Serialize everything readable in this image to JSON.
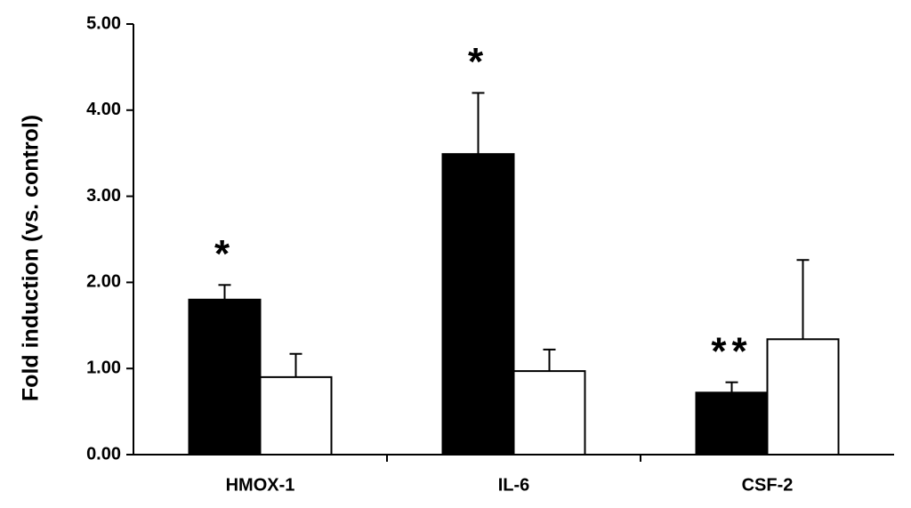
{
  "chart_data": {
    "type": "bar",
    "y_label": "Fold induction (vs. control)",
    "categories": [
      "HMOX-1",
      "IL-6",
      "CSF-2"
    ],
    "series": [
      {
        "color": "#000000",
        "values": [
          1.8,
          3.49,
          0.72
        ],
        "errors": [
          0.17,
          0.71,
          0.12
        ],
        "annotations": [
          "*",
          "*",
          "**"
        ]
      },
      {
        "color": "#ffffff",
        "values": [
          0.9,
          0.97,
          1.34
        ],
        "errors": [
          0.27,
          0.25,
          0.92
        ]
      }
    ],
    "ylim": [
      0,
      5
    ],
    "yticks": [
      {
        "value": 0,
        "label": "0.00"
      },
      {
        "value": 1,
        "label": "1.00"
      },
      {
        "value": 2,
        "label": "2.00"
      },
      {
        "value": 3,
        "label": "3.00"
      },
      {
        "value": 4,
        "label": "4.00"
      },
      {
        "value": 5,
        "label": "5.00"
      }
    ],
    "grid": false
  }
}
